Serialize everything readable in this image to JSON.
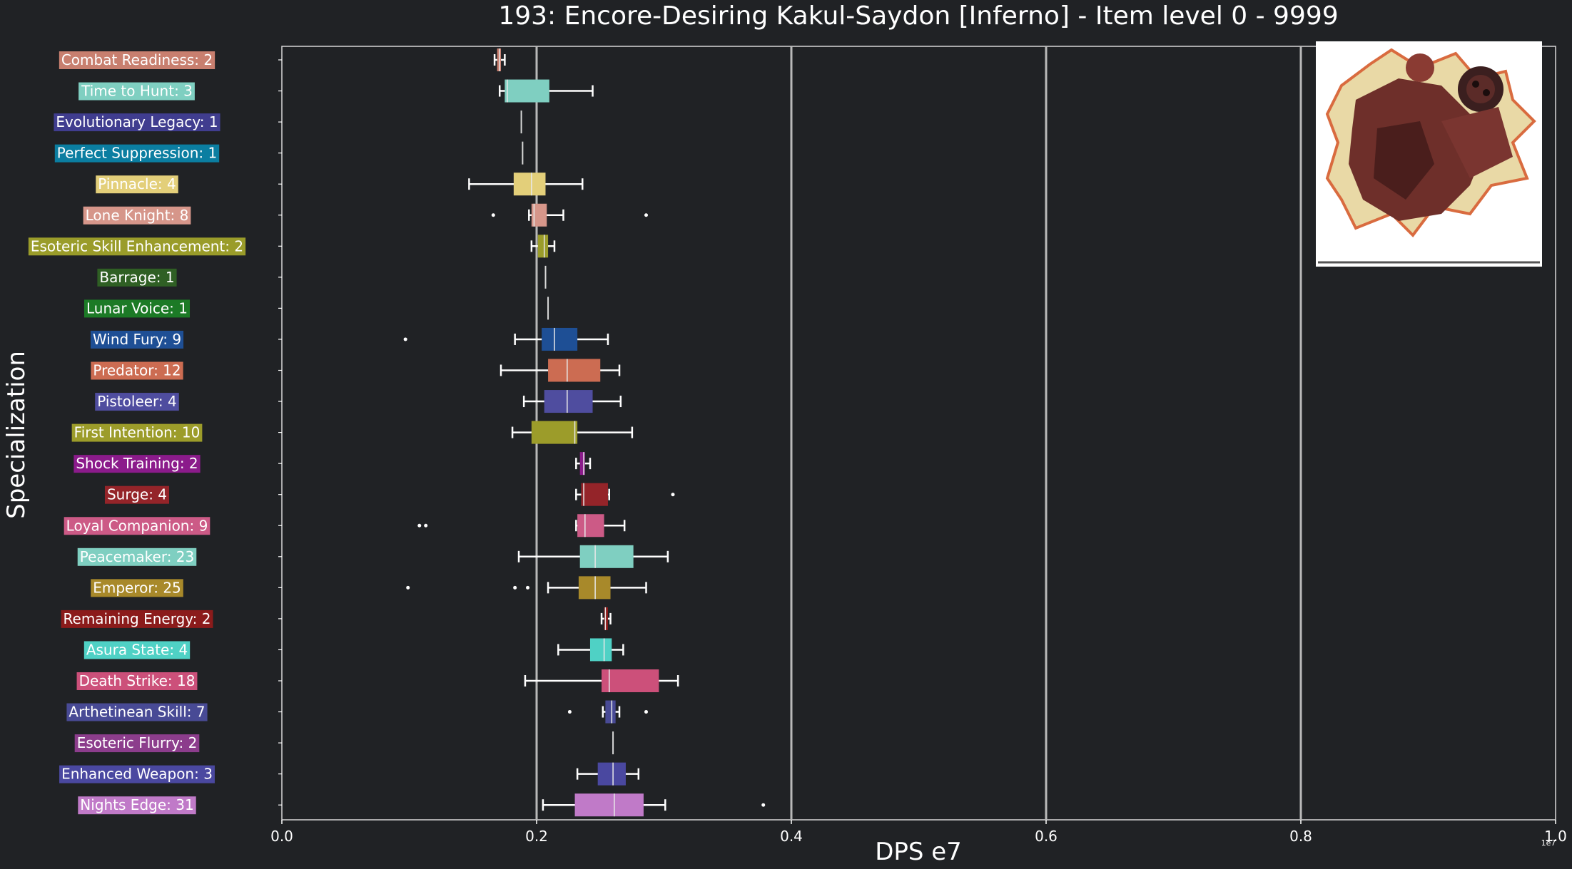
{
  "chart_data": {
    "type": "box",
    "title": "193: Encore-Desiring Kakul-Saydon [Inferno] - Item level 0 - 9999",
    "xlabel": "DPS e7",
    "ylabel": "Specialization",
    "xlim": [
      0.0,
      1.0
    ],
    "x_ticks": [
      "0.0",
      "0.2",
      "0.4",
      "0.6",
      "0.8",
      "1.0"
    ],
    "x_tick_values": [
      0.0,
      0.2,
      0.4,
      0.6,
      0.8,
      1.0
    ],
    "x_scale_label": "1e7",
    "vertical_grid": [
      0.2,
      0.4,
      0.6,
      0.8
    ],
    "image_inset": "boss portrait, top-right",
    "series": [
      {
        "label": "Combat Readiness: 2",
        "color": "#c87f6f",
        "min": 0.167,
        "q1": 0.169,
        "median": 0.171,
        "q3": 0.172,
        "max": 0.175,
        "outliers": []
      },
      {
        "label": "Time to Hunt: 3",
        "color": "#7fcfc1",
        "min": 0.171,
        "q1": 0.175,
        "median": 0.177,
        "q3": 0.21,
        "max": 0.244,
        "outliers": []
      },
      {
        "label": "Evolutionary Legacy: 1",
        "color": "#403d8f",
        "min": 0.188,
        "q1": 0.188,
        "median": 0.188,
        "q3": 0.188,
        "max": 0.188,
        "outliers": []
      },
      {
        "label": "Perfect Suppression: 1",
        "color": "#0b7ea1",
        "min": 0.189,
        "q1": 0.189,
        "median": 0.189,
        "q3": 0.189,
        "max": 0.189,
        "outliers": []
      },
      {
        "label": "Pinnacle: 4",
        "color": "#e3cf7a",
        "min": 0.147,
        "q1": 0.182,
        "median": 0.196,
        "q3": 0.207,
        "max": 0.236,
        "outliers": []
      },
      {
        "label": "Lone Knight: 8",
        "color": "#d6968a",
        "min": 0.194,
        "q1": 0.196,
        "median": 0.198,
        "q3": 0.208,
        "max": 0.221,
        "outliers": [
          0.166,
          0.286
        ]
      },
      {
        "label": "Esoteric Skill Enhancement: 2",
        "color": "#9a9c2a",
        "min": 0.196,
        "q1": 0.201,
        "median": 0.206,
        "q3": 0.209,
        "max": 0.214,
        "outliers": []
      },
      {
        "label": "Barrage: 1",
        "color": "#2f5f24",
        "min": 0.207,
        "q1": 0.207,
        "median": 0.207,
        "q3": 0.207,
        "max": 0.207,
        "outliers": []
      },
      {
        "label": "Lunar Voice: 1",
        "color": "#1c7a26",
        "min": 0.209,
        "q1": 0.209,
        "median": 0.209,
        "q3": 0.209,
        "max": 0.209,
        "outliers": []
      },
      {
        "label": "Wind Fury: 9",
        "color": "#1e4f95",
        "min": 0.183,
        "q1": 0.204,
        "median": 0.214,
        "q3": 0.232,
        "max": 0.256,
        "outliers": [
          0.097
        ]
      },
      {
        "label": "Predator: 12",
        "color": "#cc6c52",
        "min": 0.172,
        "q1": 0.209,
        "median": 0.224,
        "q3": 0.25,
        "max": 0.265,
        "outliers": []
      },
      {
        "label": "Pistoleer: 4",
        "color": "#4f4d9f",
        "min": 0.19,
        "q1": 0.206,
        "median": 0.224,
        "q3": 0.244,
        "max": 0.266,
        "outliers": []
      },
      {
        "label": "First Intention: 10",
        "color": "#9c9c2a",
        "min": 0.181,
        "q1": 0.196,
        "median": 0.23,
        "q3": 0.232,
        "max": 0.275,
        "outliers": []
      },
      {
        "label": "Shock Training: 2",
        "color": "#8b1b8b",
        "min": 0.231,
        "q1": 0.234,
        "median": 0.237,
        "q3": 0.238,
        "max": 0.242,
        "outliers": []
      },
      {
        "label": "Surge: 4",
        "color": "#942429",
        "min": 0.231,
        "q1": 0.235,
        "median": 0.237,
        "q3": 0.256,
        "max": 0.257,
        "outliers": [
          0.307
        ]
      },
      {
        "label": "Loyal Companion: 9",
        "color": "#cc5a86",
        "min": 0.231,
        "q1": 0.232,
        "median": 0.238,
        "q3": 0.253,
        "max": 0.269,
        "outliers": [
          0.108,
          0.113
        ]
      },
      {
        "label": "Peacemaker: 23",
        "color": "#7fcfc1",
        "min": 0.186,
        "q1": 0.234,
        "median": 0.246,
        "q3": 0.276,
        "max": 0.303,
        "outliers": []
      },
      {
        "label": "Emperor: 25",
        "color": "#a8892a",
        "min": 0.209,
        "q1": 0.233,
        "median": 0.246,
        "q3": 0.258,
        "max": 0.286,
        "outliers": [
          0.099,
          0.183,
          0.193
        ]
      },
      {
        "label": "Remaining Energy: 2",
        "color": "#8b1b1b",
        "min": 0.251,
        "q1": 0.253,
        "median": 0.254,
        "q3": 0.256,
        "max": 0.258,
        "outliers": []
      },
      {
        "label": "Asura State: 4",
        "color": "#4fd1c5",
        "min": 0.217,
        "q1": 0.242,
        "median": 0.253,
        "q3": 0.259,
        "max": 0.268,
        "outliers": []
      },
      {
        "label": "Death Strike: 18",
        "color": "#cc507a",
        "min": 0.191,
        "q1": 0.251,
        "median": 0.257,
        "q3": 0.296,
        "max": 0.311,
        "outliers": []
      },
      {
        "label": "Arthetinean Skill: 7",
        "color": "#484a95",
        "min": 0.252,
        "q1": 0.254,
        "median": 0.259,
        "q3": 0.262,
        "max": 0.265,
        "outliers": [
          0.226,
          0.286
        ]
      },
      {
        "label": "Esoteric Flurry: 2",
        "color": "#8c3d8c",
        "min": 0.26,
        "q1": 0.26,
        "median": 0.26,
        "q3": 0.26,
        "max": 0.26,
        "outliers": []
      },
      {
        "label": "Enhanced Weapon: 3",
        "color": "#4a48a0",
        "min": 0.232,
        "q1": 0.248,
        "median": 0.26,
        "q3": 0.27,
        "max": 0.28,
        "outliers": []
      },
      {
        "label": "Nights Edge: 31",
        "color": "#c07ac8",
        "min": 0.205,
        "q1": 0.23,
        "median": 0.261,
        "q3": 0.284,
        "max": 0.301,
        "outliers": [
          0.378
        ]
      }
    ]
  }
}
